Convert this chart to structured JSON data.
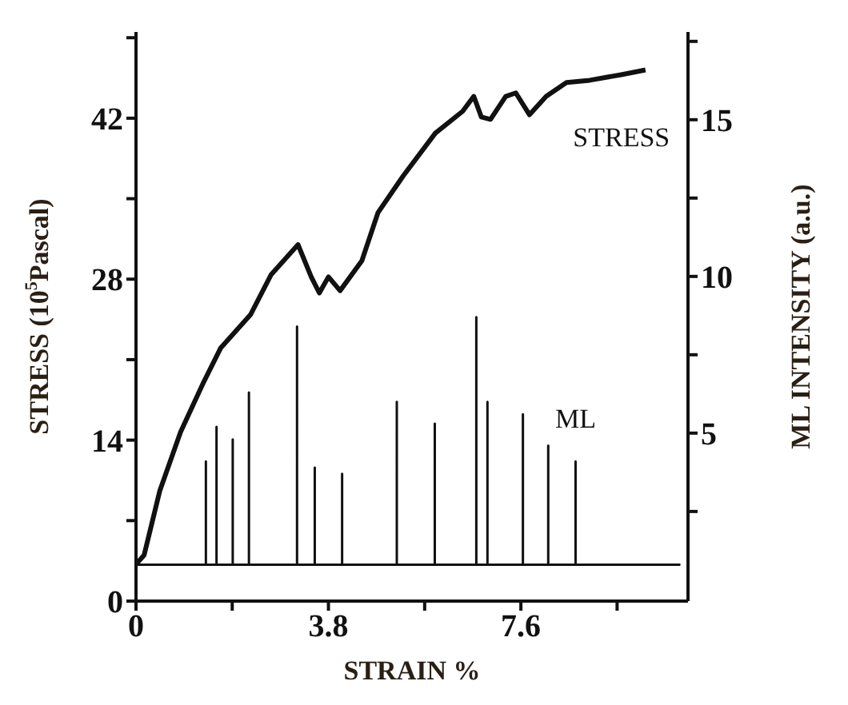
{
  "chart_data": {
    "type": "line",
    "xlabel": "STRAIN %",
    "ylabel": "STRESS (10$^{5}$Pascal)",
    "y2label": "ML INTENSITY (a.u.)",
    "xlim": [
      0,
      10.9
    ],
    "xticks": [
      0,
      {
        "value": 1.9,
        "label": null
      },
      3.8,
      {
        "value": 5.7,
        "label": null
      },
      7.6,
      {
        "value": 9.5,
        "label": null
      }
    ],
    "ylim": [
      0,
      49.5
    ],
    "yticks": [
      0,
      {
        "value": 7,
        "label": null
      },
      14,
      {
        "value": 21,
        "label": null
      },
      28,
      {
        "value": 35,
        "label": null
      },
      42,
      {
        "value": 49,
        "label": null
      }
    ],
    "y2lim": [
      -0.36,
      17.8
    ],
    "y2ticks": [
      {
        "value": 2.5,
        "label": null
      },
      5,
      {
        "value": 7.5,
        "label": null
      },
      10,
      {
        "value": 12.5,
        "label": null
      },
      15,
      {
        "value": 17.5,
        "label": null
      }
    ],
    "marker": "none",
    "line_style": "solid",
    "series": [
      {
        "name": "STRESS",
        "color": "#111111",
        "x": [
          0,
          0.16,
          0.47,
          0.88,
          1.32,
          1.67,
          2.26,
          2.67,
          3.2,
          3.46,
          3.62,
          3.8,
          4.03,
          4.46,
          4.78,
          5.28,
          5.91,
          6.45,
          6.67,
          6.82,
          7.0,
          7.3,
          7.5,
          7.77,
          8.1,
          8.5,
          8.96,
          9.6,
          10.06
        ],
        "values": [
          3.2,
          4.0,
          9.6,
          14.7,
          18.9,
          22.0,
          24.9,
          28.4,
          31.0,
          28.2,
          26.8,
          28.2,
          27.0,
          29.6,
          33.8,
          37.0,
          40.7,
          42.6,
          43.9,
          42.1,
          41.9,
          43.9,
          44.2,
          42.3,
          43.9,
          45.1,
          45.3,
          45.8,
          46.2
        ]
      },
      {
        "name": "ML",
        "color": "#111111",
        "axis": "y2",
        "x": [
          0,
          1.38,
          1.38,
          1.38,
          1.59,
          1.59,
          1.59,
          1.91,
          1.91,
          1.91,
          2.23,
          2.23,
          2.23,
          3.18,
          3.18,
          3.18,
          3.53,
          3.53,
          3.53,
          4.07,
          4.07,
          4.07,
          5.15,
          5.15,
          5.15,
          5.9,
          5.9,
          5.9,
          6.72,
          6.72,
          6.72,
          6.94,
          6.94,
          6.94,
          7.64,
          7.64,
          7.64,
          8.14,
          8.14,
          8.14,
          8.68,
          8.68,
          8.68,
          10.75
        ],
        "values": [
          0.8,
          0.8,
          4.1,
          0.8,
          0.8,
          5.2,
          0.8,
          0.8,
          4.8,
          0.8,
          0.8,
          6.3,
          0.8,
          0.8,
          8.4,
          0.8,
          0.8,
          3.9,
          0.8,
          0.8,
          3.7,
          0.8,
          0.8,
          6.0,
          0.8,
          0.8,
          5.3,
          0.8,
          0.8,
          8.7,
          0.8,
          0.8,
          6.0,
          0.8,
          0.8,
          5.6,
          0.8,
          0.8,
          4.6,
          0.8,
          0.8,
          4.1,
          0.8,
          0.8
        ]
      }
    ]
  }
}
